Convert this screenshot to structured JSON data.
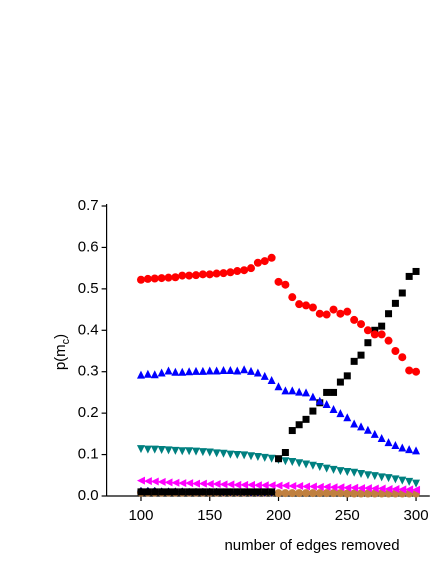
{
  "chart_data": {
    "type": "scatter",
    "xlabel": "number of edges removed",
    "ylabel": {
      "base": "p(m",
      "sub": "c",
      "end": ")"
    },
    "xlim": [
      75,
      310
    ],
    "ylim": [
      0,
      0.7
    ],
    "xticks": [
      100,
      150,
      200,
      250,
      300
    ],
    "yticks": [
      {
        "value": 0,
        "label": "0.0"
      },
      0.1,
      0.2,
      0.3,
      0.4,
      0.5,
      0.6,
      0.7
    ],
    "x": [
      100,
      105,
      110,
      115,
      120,
      125,
      130,
      135,
      140,
      145,
      150,
      155,
      160,
      165,
      170,
      175,
      180,
      185,
      190,
      195,
      200,
      205,
      210,
      215,
      220,
      225,
      230,
      235,
      240,
      245,
      250,
      255,
      260,
      265,
      270,
      275,
      280,
      285,
      290,
      295,
      300
    ],
    "series": [
      {
        "marker": "circle",
        "color": "#ff0000",
        "values": [
          0.522,
          0.524,
          0.525,
          0.526,
          0.527,
          0.528,
          0.532,
          0.532,
          0.533,
          0.535,
          0.535,
          0.537,
          0.538,
          0.54,
          0.543,
          0.545,
          0.55,
          0.563,
          0.567,
          0.575,
          0.517,
          0.51,
          0.48,
          0.463,
          0.46,
          0.455,
          0.44,
          0.438,
          0.45,
          0.44,
          0.445,
          0.425,
          0.415,
          0.4,
          0.39,
          0.39,
          0.375,
          0.35,
          0.335,
          0.303,
          0.3
        ]
      },
      {
        "marker": "triangle-up",
        "color": "#0000ff",
        "values": [
          0.293,
          0.295,
          0.294,
          0.298,
          0.303,
          0.3,
          0.3,
          0.301,
          0.302,
          0.302,
          0.303,
          0.303,
          0.304,
          0.304,
          0.303,
          0.306,
          0.302,
          0.298,
          0.29,
          0.28,
          0.265,
          0.255,
          0.255,
          0.252,
          0.25,
          0.24,
          0.23,
          0.222,
          0.21,
          0.2,
          0.19,
          0.175,
          0.168,
          0.16,
          0.15,
          0.14,
          0.13,
          0.123,
          0.117,
          0.113,
          0.11
        ]
      },
      {
        "marker": "square",
        "color": "#000000",
        "values": [
          0.01,
          0.01,
          0.01,
          0.01,
          0.01,
          0.01,
          0.01,
          0.01,
          0.01,
          0.01,
          0.01,
          0.01,
          0.01,
          0.01,
          0.01,
          0.01,
          0.01,
          0.01,
          0.01,
          0.01,
          0.09,
          0.105,
          0.158,
          0.172,
          0.185,
          0.205,
          0.225,
          0.25,
          0.25,
          0.275,
          0.29,
          0.325,
          0.34,
          0.37,
          0.4,
          0.41,
          0.44,
          0.465,
          0.49,
          0.53,
          0.542
        ]
      },
      {
        "marker": "triangle-down",
        "color": "#008080",
        "values": [
          0.113,
          0.112,
          0.112,
          0.111,
          0.11,
          0.109,
          0.108,
          0.108,
          0.107,
          0.106,
          0.105,
          0.103,
          0.102,
          0.1,
          0.099,
          0.098,
          0.096,
          0.094,
          0.092,
          0.09,
          0.087,
          0.084,
          0.082,
          0.079,
          0.076,
          0.073,
          0.07,
          0.066,
          0.063,
          0.06,
          0.058,
          0.056,
          0.053,
          0.05,
          0.048,
          0.045,
          0.043,
          0.04,
          0.037,
          0.034,
          0.03
        ]
      },
      {
        "marker": "triangle-left",
        "color": "#ff00ff",
        "values": [
          0.037,
          0.036,
          0.035,
          0.034,
          0.033,
          0.032,
          0.031,
          0.031,
          0.03,
          0.03,
          0.029,
          0.029,
          0.028,
          0.028,
          0.027,
          0.027,
          0.027,
          0.026,
          0.026,
          0.026,
          0.025,
          0.025,
          0.024,
          0.024,
          0.023,
          0.023,
          0.022,
          0.022,
          0.021,
          0.021,
          0.02,
          0.02,
          0.019,
          0.019,
          0.018,
          0.018,
          0.017,
          0.017,
          0.016,
          0.016,
          0.015
        ]
      },
      {
        "marker": "diamond",
        "color": "#000080",
        "values": [
          0.012,
          0.012,
          0.012,
          0.011,
          0.011,
          0.011,
          0.011,
          0.01,
          0.01,
          0.01,
          0.01,
          0.01,
          0.009,
          0.009,
          0.009,
          0.009,
          0.008,
          0.008,
          0.008,
          0.008,
          null,
          null,
          null,
          null,
          null,
          null,
          null,
          null,
          null,
          null,
          null,
          null,
          null,
          null,
          null,
          null,
          null,
          null,
          null,
          null,
          null
        ]
      },
      {
        "marker": "circle",
        "color": "#c0803f",
        "values": [
          0.008,
          0.008,
          0.008,
          0.008,
          0.008,
          0.008,
          0.008,
          0.008,
          0.008,
          0.008,
          0.008,
          0.008,
          0.008,
          0.008,
          0.008,
          0.008,
          0.008,
          0.008,
          0.008,
          0.008,
          0.007,
          0.007,
          0.007,
          0.007,
          0.007,
          0.007,
          0.007,
          0.007,
          0.007,
          0.007,
          0.006,
          0.006,
          0.006,
          0.006,
          0.006,
          0.006,
          0.006,
          0.006,
          0.006,
          0.006,
          0.006
        ]
      }
    ]
  }
}
